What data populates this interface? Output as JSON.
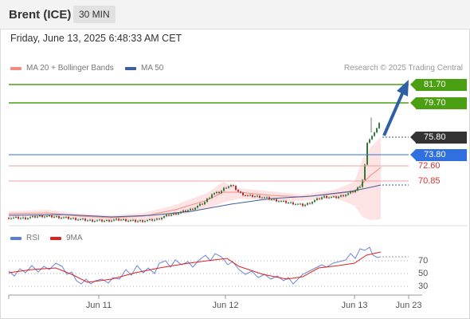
{
  "header": {
    "title": "Brent (ICE)",
    "timeframe": "30 MIN",
    "datetime": "Friday, June 13, 2025 6:48:33 AM CET"
  },
  "legend": {
    "ma20": {
      "label": "MA 20 + Bollinger Bands",
      "color": "#f28b82"
    },
    "ma50": {
      "label": "MA 50",
      "color": "#3b5fa0"
    },
    "copyright": "Research © 2025 Trading Central"
  },
  "levels": [
    {
      "value": "81.70",
      "kind": "resistance",
      "color": "#4aa012"
    },
    {
      "value": "79.70",
      "kind": "resistance",
      "color": "#4aa012"
    },
    {
      "value": "75.80",
      "kind": "last",
      "color": "#333333"
    },
    {
      "value": "73.80",
      "kind": "pivot",
      "color": "#2f6fe0"
    },
    {
      "value": "72.60",
      "kind": "support",
      "color": "#d6322e"
    },
    {
      "value": "70.85",
      "kind": "support",
      "color": "#d6322e"
    }
  ],
  "rsi_legend": {
    "rsi": {
      "label": "RSI",
      "color": "#5a7fd6"
    },
    "ma": {
      "label": "9MA",
      "color": "#e02020"
    }
  },
  "rsi_axis": [
    "70",
    "50",
    "30"
  ],
  "xaxis": [
    "Jun 11",
    "Jun 12",
    "Jun 13",
    "Jun 23"
  ],
  "chart_data": {
    "type": "line",
    "title": "Brent (ICE)",
    "series": [
      {
        "name": "MA 20",
        "values": []
      },
      {
        "name": "MA 50",
        "values": []
      }
    ],
    "price_path": [
      [
        0,
        65.9
      ],
      [
        20,
        65.85
      ],
      [
        40,
        66.1
      ],
      [
        60,
        66.0
      ],
      [
        80,
        65.8
      ],
      [
        100,
        65.6
      ],
      [
        120,
        65.55
      ],
      [
        140,
        65.7
      ],
      [
        160,
        65.5
      ],
      [
        175,
        65.6
      ],
      [
        185,
        65.7
      ],
      [
        200,
        66.2
      ],
      [
        215,
        66.5
      ],
      [
        230,
        66.9
      ],
      [
        245,
        67.6
      ],
      [
        255,
        68.6
      ],
      [
        265,
        68.8
      ],
      [
        272,
        69.4
      ],
      [
        280,
        69.6
      ],
      [
        290,
        68.7
      ],
      [
        300,
        68.4
      ],
      [
        315,
        68.3
      ],
      [
        330,
        68.0
      ],
      [
        345,
        67.7
      ],
      [
        360,
        67.5
      ],
      [
        370,
        67.3
      ],
      [
        380,
        67.7
      ],
      [
        395,
        68.3
      ],
      [
        410,
        68.2
      ],
      [
        425,
        68.6
      ],
      [
        435,
        69.0
      ],
      [
        443,
        69.7
      ],
      [
        447,
        71.9
      ],
      [
        450,
        74.3
      ],
      [
        454,
        75.1
      ],
      [
        458,
        75.3
      ],
      [
        462,
        76.2
      ],
      [
        466,
        76.9
      ],
      [
        470,
        75.9
      ],
      [
        474,
        75.6
      ],
      [
        478,
        75.8
      ]
    ],
    "price_high": 77.3,
    "bollinger_ma20_end": 71.7,
    "ma50_end": 70.5,
    "forecast": {
      "from": 75.8,
      "to": 81.7
    },
    "rsi_levels": [
      70,
      50,
      30
    ],
    "ylim": [
      65.0,
      82.5
    ],
    "x_labels": [
      "Jun 11",
      "Jun 12",
      "Jun 13",
      "Jun 23"
    ]
  }
}
